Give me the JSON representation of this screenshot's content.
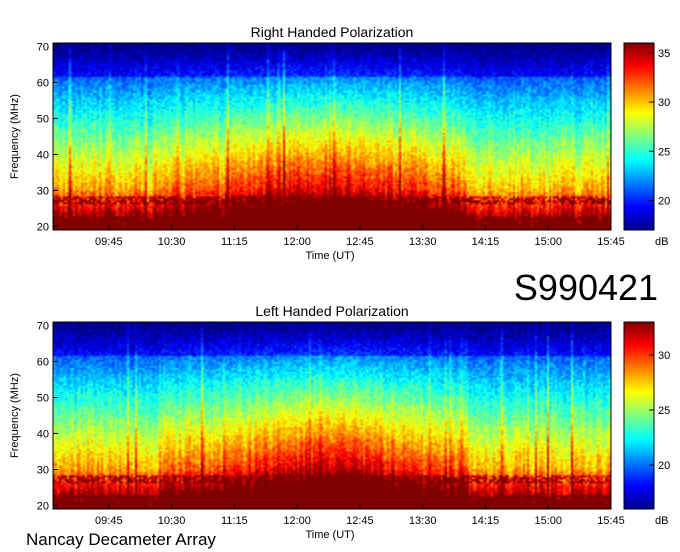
{
  "footer_label": "Nancay Decameter Array",
  "event_id": "S990421",
  "chart_data": [
    {
      "type": "heatmap",
      "title": "Right Handed Polarization",
      "xlabel": "Time (UT)",
      "ylabel": "Frequency (MHz)",
      "x_ticks": [
        "09:45",
        "10:30",
        "11:15",
        "12:00",
        "12:45",
        "13:30",
        "14:15",
        "15:00",
        "15:45"
      ],
      "xlim": [
        "09:05",
        "15:45"
      ],
      "y_ticks": [
        20,
        30,
        40,
        50,
        60,
        70
      ],
      "ylim": [
        19,
        71
      ],
      "colorbar": {
        "ticks": [
          20,
          25,
          30,
          35
        ],
        "range": [
          17,
          36
        ],
        "unit": "dB",
        "colormap": "jet"
      },
      "bright_band_MHz": [
        19,
        30
      ],
      "peak_activity_window": [
        "11:30",
        "13:15"
      ]
    },
    {
      "type": "heatmap",
      "title": "Left Handed Polarization",
      "xlabel": "Time (UT)",
      "ylabel": "Frequency (MHz)",
      "x_ticks": [
        "09:45",
        "10:30",
        "11:15",
        "12:00",
        "12:45",
        "13:30",
        "14:15",
        "15:00",
        "15:45"
      ],
      "xlim": [
        "09:05",
        "15:45"
      ],
      "y_ticks": [
        20,
        30,
        40,
        50,
        60,
        70
      ],
      "ylim": [
        19,
        71
      ],
      "colorbar": {
        "ticks": [
          20,
          25,
          30
        ],
        "range": [
          16,
          33
        ],
        "unit": "dB",
        "colormap": "jet"
      },
      "bright_band_MHz": [
        19,
        30
      ],
      "peak_activity_window": [
        "11:30",
        "13:15"
      ]
    }
  ]
}
